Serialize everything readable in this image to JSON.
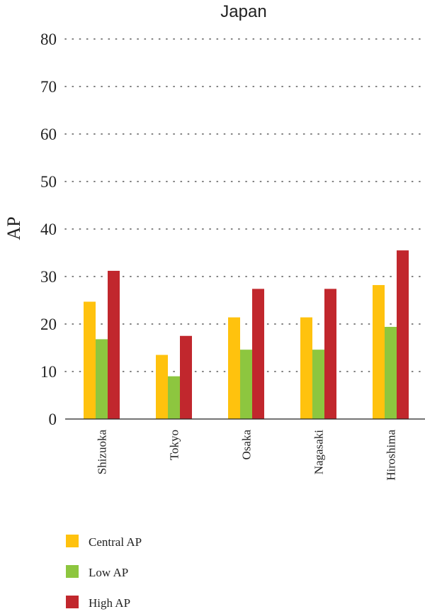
{
  "chart_data": {
    "type": "bar",
    "title": "Japan",
    "xlabel": "",
    "ylabel": "AP",
    "ylim": [
      0,
      80
    ],
    "yticks": [
      0,
      10,
      20,
      30,
      40,
      50,
      60,
      70,
      80
    ],
    "categories": [
      "Shizuoka",
      "Tokyo",
      "Osaka",
      "Nagasaki",
      "Hiroshima"
    ],
    "series": [
      {
        "name": "Central AP",
        "color": "#FFC20E",
        "values": [
          24.7,
          13.5,
          21.4,
          21.4,
          28.2
        ]
      },
      {
        "name": "Low AP",
        "color": "#8DC63F",
        "values": [
          16.8,
          9.0,
          14.6,
          14.6,
          19.4
        ]
      },
      {
        "name": "High AP",
        "color": "#C1272D",
        "values": [
          31.2,
          17.5,
          27.4,
          27.4,
          35.5
        ]
      }
    ],
    "grid": true,
    "legend_position": "bottom-left"
  }
}
